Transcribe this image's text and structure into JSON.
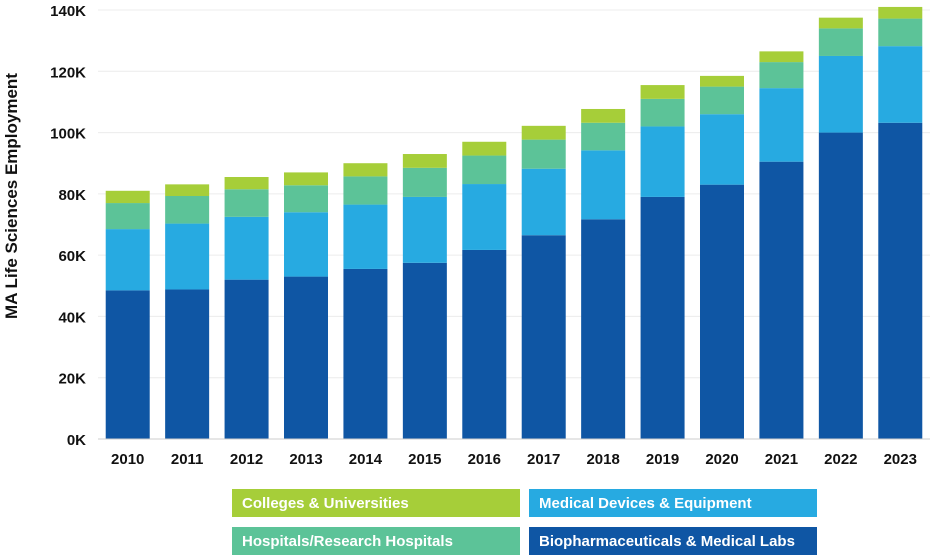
{
  "chart_data": {
    "type": "bar",
    "stacked": true,
    "ylabel": "MA Life Sciences Employment",
    "ylim": [
      0,
      140000
    ],
    "yticks": [
      0,
      20000,
      40000,
      60000,
      80000,
      100000,
      120000,
      140000
    ],
    "ytick_labels": [
      "0K",
      "20K",
      "40K",
      "60K",
      "80K",
      "100K",
      "120K",
      "140K"
    ],
    "categories": [
      "2010",
      "2011",
      "2012",
      "2013",
      "2014",
      "2015",
      "2016",
      "2017",
      "2018",
      "2019",
      "2020",
      "2021",
      "2022",
      "2023"
    ],
    "grid": true,
    "legend_position": "bottom",
    "series": [
      {
        "name": "Biopharmaceuticals & Medical Labs",
        "color": "#0f56a4",
        "values": [
          48500,
          48800,
          52000,
          53000,
          55500,
          57500,
          61700,
          66500,
          71700,
          79000,
          83000,
          90500,
          100000,
          103200
        ]
      },
      {
        "name": "Medical Devices & Equipment",
        "color": "#27aae1",
        "values": [
          20000,
          21500,
          20500,
          21000,
          21000,
          21500,
          21500,
          21700,
          22500,
          23000,
          23000,
          24000,
          25000,
          25000
        ]
      },
      {
        "name": "Hospitals/Research Hospitals",
        "color": "#5cc398",
        "values": [
          8500,
          9000,
          9000,
          8800,
          9200,
          9500,
          9300,
          9500,
          9000,
          9000,
          9000,
          8500,
          9000,
          9000
        ]
      },
      {
        "name": "Colleges & Universities",
        "color": "#a6ce39",
        "values": [
          4000,
          3800,
          4000,
          4200,
          4300,
          4500,
          4500,
          4500,
          4500,
          4500,
          3500,
          3500,
          3500,
          3800
        ]
      }
    ]
  }
}
